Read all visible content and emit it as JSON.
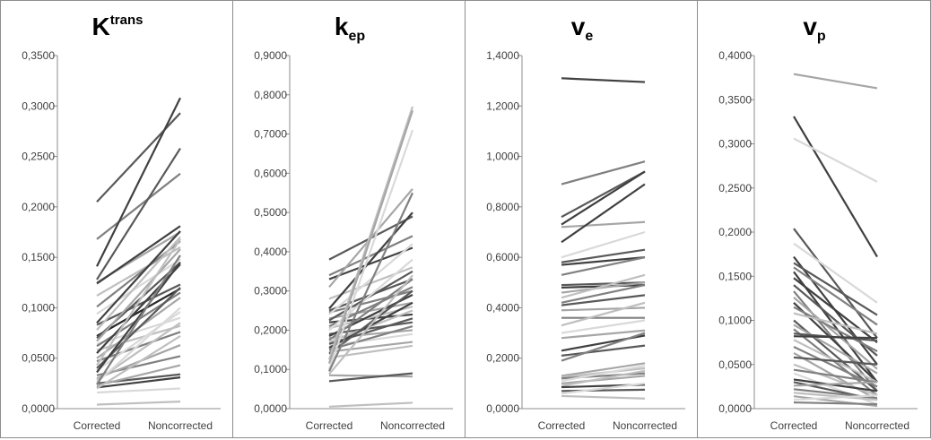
{
  "chart_data": [
    {
      "type": "line",
      "title": "K",
      "title_sup": "trans",
      "title_sub": "",
      "categories": [
        "Corrected",
        "Noncorrected"
      ],
      "ylim": [
        0,
        0.35
      ],
      "ytick_step": 0.05,
      "yticks": [
        "0,0000",
        "0,0500",
        "0,1000",
        "0,1500",
        "0,2000",
        "0,2500",
        "0,3000",
        "0,3500"
      ],
      "grid": false,
      "lines": [
        {
          "values": [
            0.205,
            0.293
          ],
          "color": "#595959"
        },
        {
          "values": [
            0.168,
            0.233
          ],
          "color": "#7f7f7f"
        },
        {
          "values": [
            0.141,
            0.308
          ],
          "color": "#404040"
        },
        {
          "values": [
            0.128,
            0.258
          ],
          "color": "#595959"
        },
        {
          "values": [
            0.125,
            0.175
          ],
          "color": "#a6a6a6"
        },
        {
          "values": [
            0.124,
            0.181
          ],
          "color": "#404040"
        },
        {
          "values": [
            0.112,
            0.16
          ],
          "color": "#bfbfbf"
        },
        {
          "values": [
            0.101,
            0.166
          ],
          "color": "#808080"
        },
        {
          "values": [
            0.094,
            0.148
          ],
          "color": "#d9d9d9"
        },
        {
          "values": [
            0.085,
            0.176
          ],
          "color": "#404040"
        },
        {
          "values": [
            0.083,
            0.123
          ],
          "color": "#595959"
        },
        {
          "values": [
            0.078,
            0.17
          ],
          "color": "#bfbfbf"
        },
        {
          "values": [
            0.072,
            0.119
          ],
          "color": "#262626"
        },
        {
          "values": [
            0.07,
            0.145
          ],
          "color": "#595959"
        },
        {
          "values": [
            0.067,
            0.158
          ],
          "color": "#a6a6a6"
        },
        {
          "values": [
            0.064,
            0.09
          ],
          "color": "#d9d9d9"
        },
        {
          "values": [
            0.062,
            0.115
          ],
          "color": "#808080"
        },
        {
          "values": [
            0.058,
            0.082
          ],
          "color": "#bfbfbf"
        },
        {
          "values": [
            0.055,
            0.143
          ],
          "color": "#404040"
        },
        {
          "values": [
            0.05,
            0.11
          ],
          "color": "#a6a6a6"
        },
        {
          "values": [
            0.047,
            0.076
          ],
          "color": "#808080"
        },
        {
          "values": [
            0.043,
            0.168
          ],
          "color": "#bfbfbf"
        },
        {
          "values": [
            0.04,
            0.12
          ],
          "color": "#595959"
        },
        {
          "values": [
            0.038,
            0.096
          ],
          "color": "#d9d9d9"
        },
        {
          "values": [
            0.036,
            0.145
          ],
          "color": "#404040"
        },
        {
          "values": [
            0.033,
            0.052
          ],
          "color": "#808080"
        },
        {
          "values": [
            0.03,
            0.063
          ],
          "color": "#a6a6a6"
        },
        {
          "values": [
            0.028,
            0.085
          ],
          "color": "#bfbfbf"
        },
        {
          "values": [
            0.026,
            0.1
          ],
          "color": "#d9d9d9"
        },
        {
          "values": [
            0.025,
            0.034
          ],
          "color": "#595959"
        },
        {
          "values": [
            0.024,
            0.152
          ],
          "color": "#808080"
        },
        {
          "values": [
            0.023,
            0.043
          ],
          "color": "#a6a6a6"
        },
        {
          "values": [
            0.021,
            0.031
          ],
          "color": "#404040"
        },
        {
          "values": [
            0.02,
            0.072
          ],
          "color": "#bfbfbf"
        },
        {
          "values": [
            0.016,
            0.02
          ],
          "color": "#d9d9d9"
        },
        {
          "values": [
            0.004,
            0.007
          ],
          "color": "#bfbfbf"
        }
      ]
    },
    {
      "type": "line",
      "title": "k",
      "title_sup": "",
      "title_sub": "ep",
      "categories": [
        "Corrected",
        "Noncorrected"
      ],
      "ylim": [
        0,
        0.9
      ],
      "ytick_step": 0.1,
      "yticks": [
        "0,0000",
        "0,1000",
        "0,2000",
        "0,3000",
        "0,4000",
        "0,5000",
        "0,6000",
        "0,7000",
        "0,8000",
        "0,9000"
      ],
      "grid": false,
      "lines": [
        {
          "values": [
            0.38,
            0.49
          ],
          "color": "#595959"
        },
        {
          "values": [
            0.34,
            0.44
          ],
          "color": "#808080"
        },
        {
          "values": [
            0.33,
            0.41
          ],
          "color": "#404040"
        },
        {
          "values": [
            0.31,
            0.56
          ],
          "color": "#a6a6a6"
        },
        {
          "values": [
            0.28,
            0.36
          ],
          "color": "#bfbfbf"
        },
        {
          "values": [
            0.255,
            0.5
          ],
          "color": "#404040"
        },
        {
          "values": [
            0.25,
            0.33
          ],
          "color": "#595959"
        },
        {
          "values": [
            0.245,
            0.3
          ],
          "color": "#808080"
        },
        {
          "values": [
            0.24,
            0.42
          ],
          "color": "#d9d9d9"
        },
        {
          "values": [
            0.23,
            0.27
          ],
          "color": "#a6a6a6"
        },
        {
          "values": [
            0.225,
            0.35
          ],
          "color": "#595959"
        },
        {
          "values": [
            0.22,
            0.24
          ],
          "color": "#404040"
        },
        {
          "values": [
            0.21,
            0.31
          ],
          "color": "#808080"
        },
        {
          "values": [
            0.205,
            0.26
          ],
          "color": "#bfbfbf"
        },
        {
          "values": [
            0.2,
            0.38
          ],
          "color": "#d9d9d9"
        },
        {
          "values": [
            0.19,
            0.22
          ],
          "color": "#595959"
        },
        {
          "values": [
            0.185,
            0.29
          ],
          "color": "#404040"
        },
        {
          "values": [
            0.18,
            0.2
          ],
          "color": "#a6a6a6"
        },
        {
          "values": [
            0.175,
            0.33
          ],
          "color": "#808080"
        },
        {
          "values": [
            0.17,
            0.25
          ],
          "color": "#bfbfbf"
        },
        {
          "values": [
            0.165,
            0.23
          ],
          "color": "#595959"
        },
        {
          "values": [
            0.16,
            0.19
          ],
          "color": "#d9d9d9"
        },
        {
          "values": [
            0.155,
            0.27
          ],
          "color": "#404040"
        },
        {
          "values": [
            0.15,
            0.21
          ],
          "color": "#808080"
        },
        {
          "values": [
            0.145,
            0.17
          ],
          "color": "#a6a6a6"
        },
        {
          "values": [
            0.14,
            0.3
          ],
          "color": "#595959"
        },
        {
          "values": [
            0.13,
            0.16
          ],
          "color": "#bfbfbf"
        },
        {
          "values": [
            0.125,
            0.77
          ],
          "color": "#bfbfbf"
        },
        {
          "values": [
            0.115,
            0.76
          ],
          "color": "#a6a6a6"
        },
        {
          "values": [
            0.1,
            0.71
          ],
          "color": "#d9d9d9"
        },
        {
          "values": [
            0.095,
            0.55
          ],
          "color": "#808080"
        },
        {
          "values": [
            0.088,
            0.34
          ],
          "color": "#bfbfbf"
        },
        {
          "values": [
            0.085,
            0.082
          ],
          "color": "#a6a6a6"
        },
        {
          "values": [
            0.07,
            0.09
          ],
          "color": "#595959"
        },
        {
          "values": [
            0.005,
            0.015
          ],
          "color": "#bfbfbf"
        }
      ]
    },
    {
      "type": "line",
      "title": "v",
      "title_sup": "",
      "title_sub": "e",
      "categories": [
        "Corrected",
        "Noncorrected"
      ],
      "ylim": [
        0,
        1.4
      ],
      "ytick_step": 0.2,
      "yticks": [
        "0,0000",
        "0,2000",
        "0,4000",
        "0,6000",
        "0,8000",
        "1,0000",
        "1,2000",
        "1,4000"
      ],
      "grid": false,
      "lines": [
        {
          "values": [
            1.31,
            1.295
          ],
          "color": "#404040"
        },
        {
          "values": [
            0.89,
            0.98
          ],
          "color": "#808080"
        },
        {
          "values": [
            0.76,
            0.94
          ],
          "color": "#595959"
        },
        {
          "values": [
            0.73,
            0.94
          ],
          "color": "#404040"
        },
        {
          "values": [
            0.72,
            0.74
          ],
          "color": "#a6a6a6"
        },
        {
          "values": [
            0.66,
            0.89
          ],
          "color": "#404040"
        },
        {
          "values": [
            0.6,
            0.7
          ],
          "color": "#d9d9d9"
        },
        {
          "values": [
            0.58,
            0.63
          ],
          "color": "#595959"
        },
        {
          "values": [
            0.57,
            0.6
          ],
          "color": "#404040"
        },
        {
          "values": [
            0.53,
            0.6
          ],
          "color": "#808080"
        },
        {
          "values": [
            0.49,
            0.5
          ],
          "color": "#595959"
        },
        {
          "values": [
            0.48,
            0.49
          ],
          "color": "#404040"
        },
        {
          "values": [
            0.46,
            0.5
          ],
          "color": "#a6a6a6"
        },
        {
          "values": [
            0.44,
            0.53
          ],
          "color": "#bfbfbf"
        },
        {
          "values": [
            0.42,
            0.49
          ],
          "color": "#808080"
        },
        {
          "values": [
            0.41,
            0.45
          ],
          "color": "#595959"
        },
        {
          "values": [
            0.39,
            0.4
          ],
          "color": "#a6a6a6"
        },
        {
          "values": [
            0.36,
            0.36
          ],
          "color": "#808080"
        },
        {
          "values": [
            0.33,
            0.42
          ],
          "color": "#bfbfbf"
        },
        {
          "values": [
            0.3,
            0.35
          ],
          "color": "#d9d9d9"
        },
        {
          "values": [
            0.28,
            0.31
          ],
          "color": "#a6a6a6"
        },
        {
          "values": [
            0.23,
            0.29
          ],
          "color": "#404040"
        },
        {
          "values": [
            0.21,
            0.25
          ],
          "color": "#595959"
        },
        {
          "values": [
            0.19,
            0.3
          ],
          "color": "#808080"
        },
        {
          "values": [
            0.13,
            0.18
          ],
          "color": "#a6a6a6"
        },
        {
          "values": [
            0.125,
            0.16
          ],
          "color": "#bfbfbf"
        },
        {
          "values": [
            0.12,
            0.14
          ],
          "color": "#808080"
        },
        {
          "values": [
            0.11,
            0.17
          ],
          "color": "#d9d9d9"
        },
        {
          "values": [
            0.1,
            0.13
          ],
          "color": "#a6a6a6"
        },
        {
          "values": [
            0.09,
            0.15
          ],
          "color": "#bfbfbf"
        },
        {
          "values": [
            0.085,
            0.095
          ],
          "color": "#404040"
        },
        {
          "values": [
            0.07,
            0.075
          ],
          "color": "#595959"
        },
        {
          "values": [
            0.06,
            0.1
          ],
          "color": "#d9d9d9"
        },
        {
          "values": [
            0.05,
            0.04
          ],
          "color": "#bfbfbf"
        }
      ]
    },
    {
      "type": "line",
      "title": "v",
      "title_sup": "",
      "title_sub": "p",
      "categories": [
        "Corrected",
        "Noncorrected"
      ],
      "ylim": [
        0,
        0.4
      ],
      "ytick_step": 0.05,
      "yticks": [
        "0,0000",
        "0,0500",
        "0,1000",
        "0,1500",
        "0,2000",
        "0,2500",
        "0,3000",
        "0,3500",
        "0,4000"
      ],
      "grid": false,
      "lines": [
        {
          "values": [
            0.379,
            0.363
          ],
          "color": "#a6a6a6"
        },
        {
          "values": [
            0.331,
            0.172
          ],
          "color": "#404040"
        },
        {
          "values": [
            0.306,
            0.257
          ],
          "color": "#d9d9d9"
        },
        {
          "values": [
            0.204,
            0.08
          ],
          "color": "#595959"
        },
        {
          "values": [
            0.187,
            0.12
          ],
          "color": "#d9d9d9"
        },
        {
          "values": [
            0.172,
            0.05
          ],
          "color": "#404040"
        },
        {
          "values": [
            0.165,
            0.106
          ],
          "color": "#595959"
        },
        {
          "values": [
            0.16,
            0.095
          ],
          "color": "#808080"
        },
        {
          "values": [
            0.155,
            0.03
          ],
          "color": "#404040"
        },
        {
          "values": [
            0.148,
            0.075
          ],
          "color": "#404040"
        },
        {
          "values": [
            0.14,
            0.06
          ],
          "color": "#595959"
        },
        {
          "values": [
            0.133,
            0.02
          ],
          "color": "#808080"
        },
        {
          "values": [
            0.126,
            0.045
          ],
          "color": "#a6a6a6"
        },
        {
          "values": [
            0.12,
            0.03
          ],
          "color": "#404040"
        },
        {
          "values": [
            0.115,
            0.065
          ],
          "color": "#808080"
        },
        {
          "values": [
            0.108,
            0.085
          ],
          "color": "#bfbfbf"
        },
        {
          "values": [
            0.1,
            0.02
          ],
          "color": "#595959"
        },
        {
          "values": [
            0.095,
            0.04
          ],
          "color": "#a6a6a6"
        },
        {
          "values": [
            0.09,
            0.015
          ],
          "color": "#808080"
        },
        {
          "values": [
            0.085,
            0.077
          ],
          "color": "#595959"
        },
        {
          "values": [
            0.082,
            0.08
          ],
          "color": "#404040"
        },
        {
          "values": [
            0.078,
            0.03
          ],
          "color": "#bfbfbf"
        },
        {
          "values": [
            0.07,
            0.025
          ],
          "color": "#808080"
        },
        {
          "values": [
            0.063,
            0.01
          ],
          "color": "#a6a6a6"
        },
        {
          "values": [
            0.058,
            0.05
          ],
          "color": "#595959"
        },
        {
          "values": [
            0.05,
            0.015
          ],
          "color": "#bfbfbf"
        },
        {
          "values": [
            0.044,
            0.03
          ],
          "color": "#808080"
        },
        {
          "values": [
            0.04,
            0.005
          ],
          "color": "#d9d9d9"
        },
        {
          "values": [
            0.033,
            0.02
          ],
          "color": "#404040"
        },
        {
          "values": [
            0.03,
            0.01
          ],
          "color": "#595959"
        },
        {
          "values": [
            0.026,
            0.03
          ],
          "color": "#a6a6a6"
        },
        {
          "values": [
            0.022,
            0.012
          ],
          "color": "#808080"
        },
        {
          "values": [
            0.018,
            0.01
          ],
          "color": "#bfbfbf"
        },
        {
          "values": [
            0.014,
            0.003
          ],
          "color": "#a6a6a6"
        },
        {
          "values": [
            0.01,
            0.015
          ],
          "color": "#d9d9d9"
        },
        {
          "values": [
            0.007,
            0.005
          ],
          "color": "#808080"
        }
      ]
    }
  ]
}
